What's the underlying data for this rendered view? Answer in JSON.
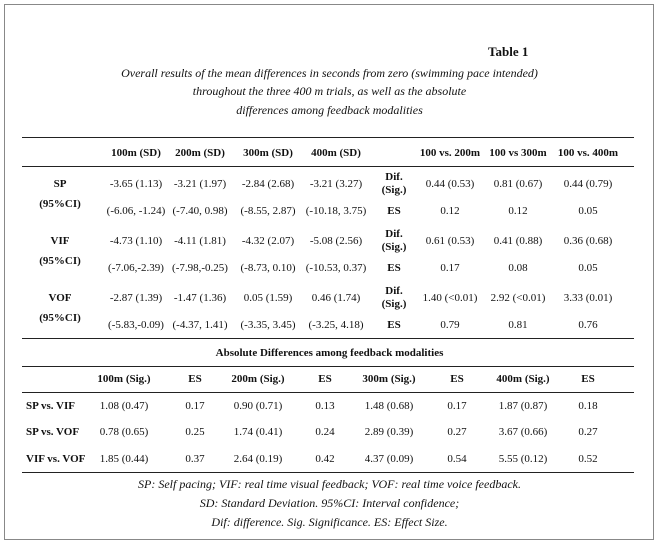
{
  "title": "Table 1",
  "caption": [
    "Overall results of the mean differences in seconds from zero (swimming pace intended)",
    "throughout the three 400 m trials, as well as the absolute",
    "differences among feedback modalities"
  ],
  "table1": {
    "header": [
      "100m (SD)",
      "200m (SD)",
      "300m (SD)",
      "400m (SD)",
      "100 vs. 200m",
      "100 vs 300m",
      "100 vs. 400m"
    ],
    "rows": [
      [
        "SP",
        "-3.65 (1.13)",
        "-3.21 (1.97)",
        "-2.84 (2.68)",
        "-3.21 (3.27)",
        "Dif. (Sig.)",
        "0.44 (0.53)",
        "0.81 (0.67)",
        "0.44 (0.79)"
      ],
      [
        "(95%CI)",
        "(-6.06, -1.24)",
        "(-7.40, 0.98)",
        "(-8.55, 2.87)",
        "(-10.18, 3.75)",
        "ES",
        "0.12",
        "0.12",
        "0.05"
      ],
      [
        "VIF",
        "-4.73 (1.10)",
        "-4.11 (1.81)",
        "-4.32 (2.07)",
        "-5.08 (2.56)",
        "Dif. (Sig.)",
        "0.61 (0.53)",
        "0.41 (0.88)",
        "0.36 (0.68)"
      ],
      [
        "(95%CI)",
        "(-7.06,-2.39)",
        "(-7.98,-0.25)",
        "(-8.73, 0.10)",
        "(-10.53, 0.37)",
        "ES",
        "0.17",
        "0.08",
        "0.05"
      ],
      [
        "VOF",
        "-2.87 (1.39)",
        "-1.47 (1.36)",
        "0.05 (1.59)",
        "0.46 (1.74)",
        "Dif. (Sig.)",
        "1.40 (<0.01)",
        "2.92 (<0.01)",
        "3.33 (0.01)"
      ],
      [
        "(95%CI)",
        "(-5.83,-0.09)",
        "(-4.37, 1.41)",
        "(-3.35, 3.45)",
        "(-3.25, 4.18)",
        "ES",
        "0.79",
        "0.81",
        "0.76"
      ]
    ]
  },
  "table2": {
    "title": "Absolute Differences among feedback modalities",
    "header": [
      "100m (Sig.)",
      "ES",
      "200m (Sig.)",
      "ES",
      "300m (Sig.)",
      "ES",
      "400m (Sig.)",
      "ES"
    ],
    "rows": [
      [
        "SP vs. VIF",
        "1.08 (0.47)",
        "0.17",
        "0.90 (0.71)",
        "0.13",
        "1.48 (0.68)",
        "0.17",
        "1.87 (0.87)",
        "0.18"
      ],
      [
        "SP vs. VOF",
        "0.78 (0.65)",
        "0.25",
        "1.74 (0.41)",
        "0.24",
        "2.89 (0.39)",
        "0.27",
        "3.67 (0.66)",
        "0.27"
      ],
      [
        "VIF vs. VOF",
        "1.85 (0.44)",
        "0.37",
        "2.64 (0.19)",
        "0.42",
        "4.37 (0.09)",
        "0.54",
        "5.55 (0.12)",
        "0.52"
      ]
    ]
  },
  "footnotes": [
    "SP: Self pacing; VIF: real time visual feedback; VOF: real time voice feedback.",
    "SD: Standard Deviation. 95%CI: Interval confidence;",
    "Dif: difference. Sig. Significance. ES: Effect Size."
  ]
}
